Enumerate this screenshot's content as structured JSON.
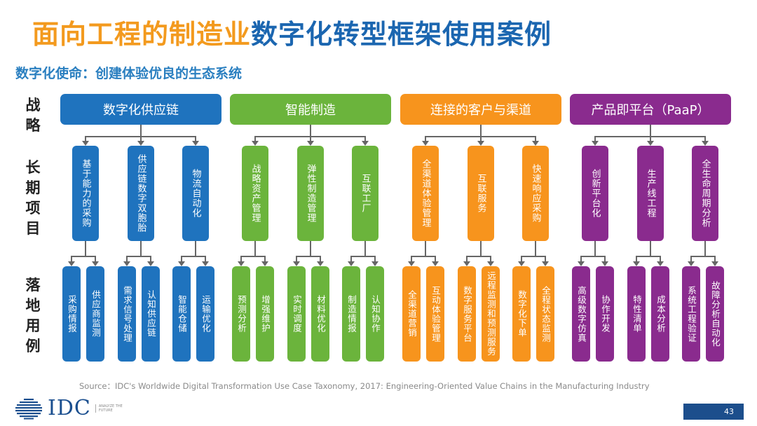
{
  "title": {
    "part1": "面向工程的制造业",
    "part2": "数字化转型框架使用案例"
  },
  "mission": "数字化使命：创建体验优良的生态系统",
  "row_labels": {
    "strategy": "战略",
    "long_term": "长期项目",
    "use_cases": "落地用例"
  },
  "colors": {
    "blue": "#1F73BE",
    "green": "#6BB43C",
    "orange": "#F7941D",
    "purple": "#8A2B8E"
  },
  "columns": [
    {
      "strategy": "数字化供应链",
      "projects": [
        {
          "label": "基于能力的采购",
          "cases": [
            "采购情报",
            "供应商监测"
          ]
        },
        {
          "label": "供应链数字双胞胎",
          "cases": [
            "需求信号处理",
            "认知供应链"
          ]
        },
        {
          "label": "物流自动化",
          "cases": [
            "智能仓储",
            "运输优化"
          ]
        }
      ]
    },
    {
      "strategy": "智能制造",
      "projects": [
        {
          "label": "战略资产管理",
          "cases": [
            "预测分析",
            "增强维护"
          ]
        },
        {
          "label": "弹性制造管理",
          "cases": [
            "实时调度",
            "材料优化"
          ]
        },
        {
          "label": "互联工厂",
          "cases": [
            "制造情报",
            "认知协作"
          ]
        }
      ]
    },
    {
      "strategy": "连接的客户与渠道",
      "projects": [
        {
          "label": "全渠道体验管理",
          "cases": [
            "全渠道营销",
            "互动体验管理"
          ]
        },
        {
          "label": "互联服务",
          "cases": [
            "数字服务平台",
            "远程监测和预测服务"
          ]
        },
        {
          "label": "快速响应采购",
          "cases": [
            "数字化下单",
            "全程状态监测"
          ]
        }
      ]
    },
    {
      "strategy": "产品即平台（PaaP）",
      "projects": [
        {
          "label": "创新平台化",
          "cases": [
            "高级数字仿真",
            "协作开发"
          ]
        },
        {
          "label": "生产线工程",
          "cases": [
            "特性清单",
            "成本分析"
          ]
        },
        {
          "label": "全生命周期分析",
          "cases": [
            "系统工程验证",
            "故障分析自动化"
          ]
        }
      ]
    }
  ],
  "source": "Source：IDC's Worldwide Digital Transformation Use Case Taxonomy, 2017: Engineering-Oriented Value Chains in the Manufacturing Industry",
  "logo": {
    "text": "IDC",
    "tagline": "ANALYZE THE FUTURE"
  },
  "page_number": "43"
}
